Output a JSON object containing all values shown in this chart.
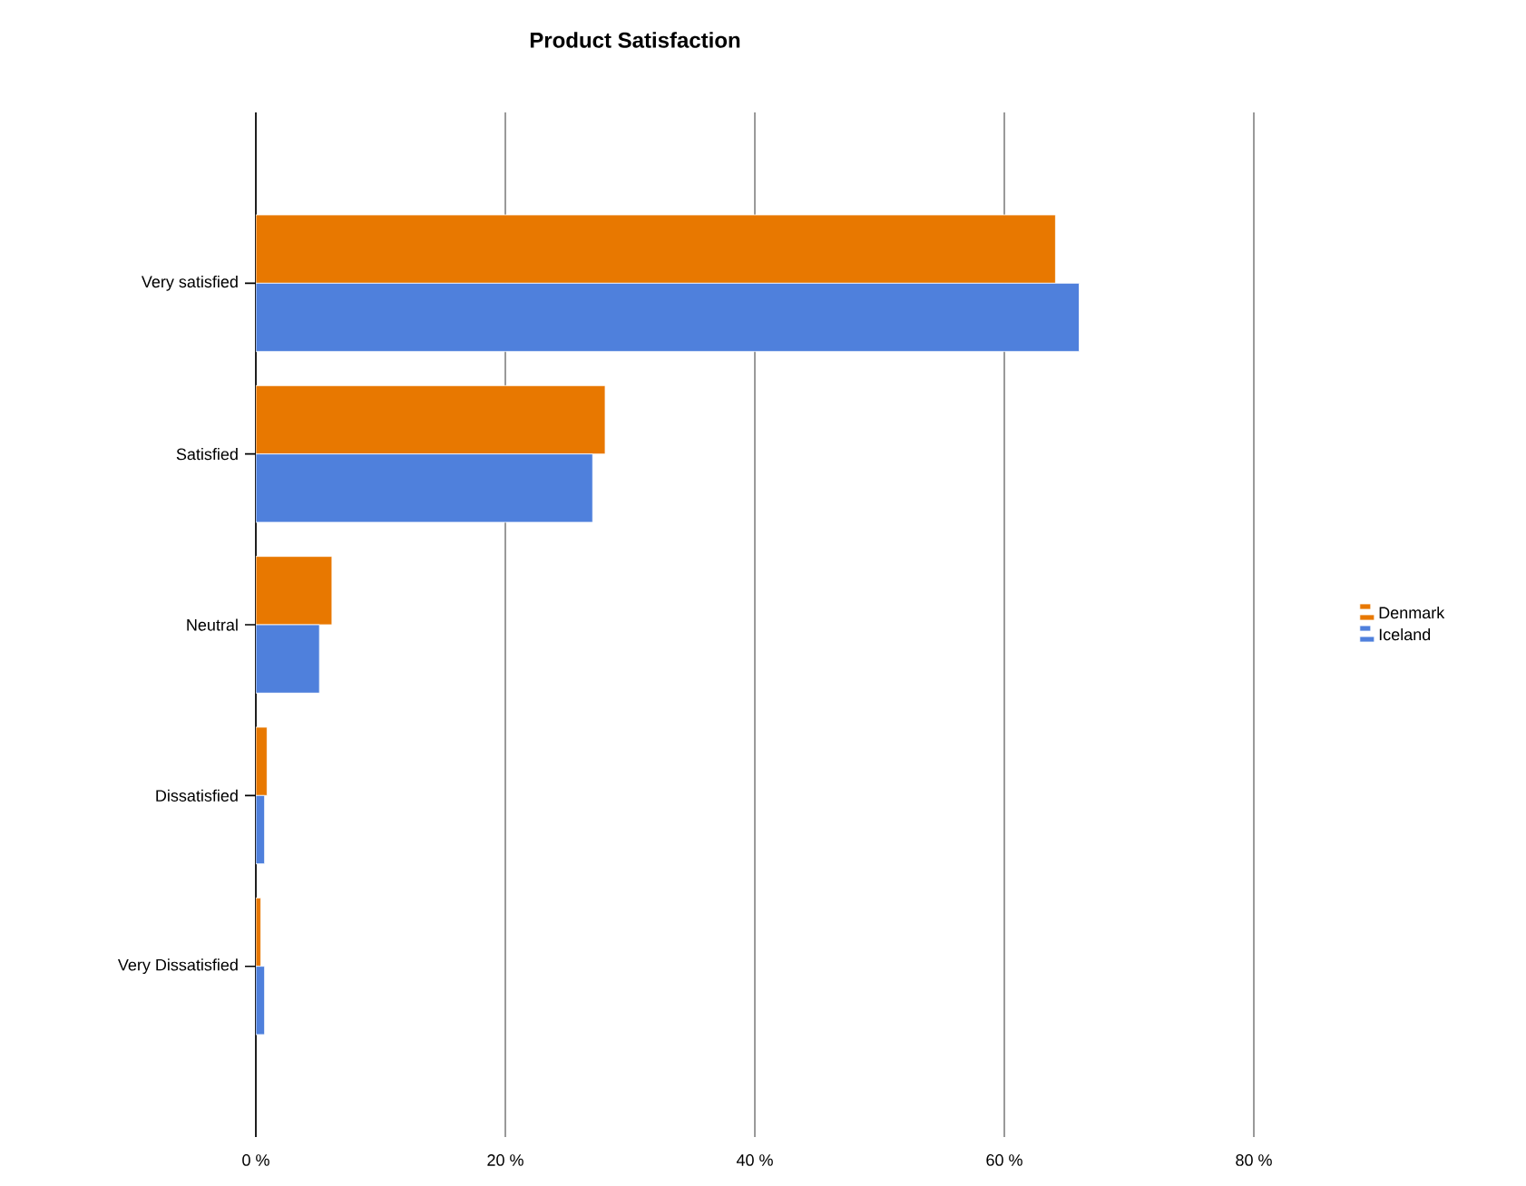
{
  "chart_data": {
    "type": "bar",
    "orientation": "horizontal",
    "title": "Product Satisfaction",
    "categories": [
      "Very satisfied",
      "Satisfied",
      "Neutral",
      "Dissatisfied",
      "Very Dissatisfied"
    ],
    "series": [
      {
        "name": "Denmark",
        "color": "#e87800",
        "values": [
          64.1,
          28.0,
          6.1,
          0.9,
          0.4
        ]
      },
      {
        "name": "Iceland",
        "color": "#4f80dc",
        "values": [
          66.0,
          27.0,
          5.1,
          0.7,
          0.7
        ]
      }
    ],
    "xlim": [
      0,
      80
    ],
    "xticks": [
      {
        "value": 0,
        "label": "0 %"
      },
      {
        "value": 20,
        "label": "20 %"
      },
      {
        "value": 40,
        "label": "40 %"
      },
      {
        "value": 60,
        "label": "60 %"
      },
      {
        "value": 80,
        "label": "80 %"
      }
    ],
    "grid": "x",
    "legend": "right"
  }
}
